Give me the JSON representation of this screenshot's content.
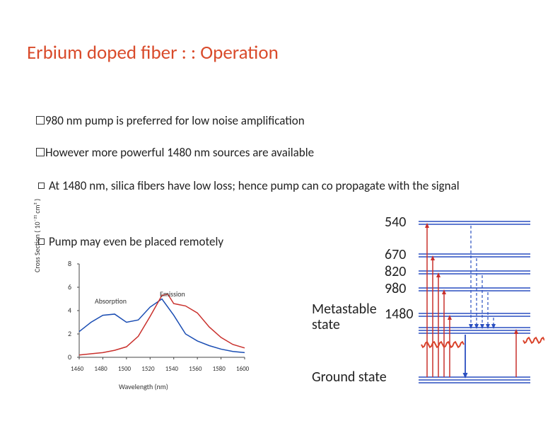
{
  "title": "Erbium doped fiber : : Operation",
  "bullets": {
    "b1": "980 nm pump is preferred for low noise amplification",
    "b2": "However more powerful 1480 nm sources are available",
    "b3": "At 1480 nm, silica fibers have low loss; hence pump can co propagate with the signal",
    "b4": "Pump may even be placed remotely"
  },
  "wavelengths": {
    "n540": "540",
    "n670": "670",
    "n820": "820",
    "n980": "980",
    "n1480": "1480"
  },
  "labels": {
    "metastable": "Metastable state",
    "ground": "Ground state"
  },
  "chart": {
    "type": "line",
    "yaxis_label": "Cross Section ( 10⁻²¹ cm² )",
    "xaxis_label": "Wavelength (nm)",
    "ylim": [
      0,
      8
    ],
    "ytick_step": 2,
    "xlim": [
      1460,
      1600
    ],
    "xtick_step": 20,
    "xticks": [
      "1460",
      "1480",
      "1500",
      "1520",
      "1540",
      "1560",
      "1580",
      "1600"
    ],
    "yticks": [
      "0",
      "2",
      "4",
      "6",
      "8"
    ],
    "series_absorption": {
      "label": "Absorption",
      "color": "#1a4db3",
      "points": [
        [
          1460,
          2.2
        ],
        [
          1470,
          3.0
        ],
        [
          1480,
          3.6
        ],
        [
          1490,
          3.7
        ],
        [
          1500,
          3.0
        ],
        [
          1510,
          3.2
        ],
        [
          1520,
          4.3
        ],
        [
          1530,
          5.0
        ],
        [
          1540,
          3.6
        ],
        [
          1550,
          2.0
        ],
        [
          1560,
          1.4
        ],
        [
          1570,
          1.0
        ],
        [
          1580,
          0.7
        ],
        [
          1590,
          0.5
        ],
        [
          1600,
          0.4
        ]
      ]
    },
    "series_emission": {
      "label": "Emission",
      "color": "#c9302c",
      "points": [
        [
          1460,
          0.2
        ],
        [
          1470,
          0.3
        ],
        [
          1480,
          0.4
        ],
        [
          1490,
          0.6
        ],
        [
          1500,
          0.9
        ],
        [
          1510,
          1.8
        ],
        [
          1520,
          3.5
        ],
        [
          1530,
          5.3
        ],
        [
          1535,
          5.4
        ],
        [
          1540,
          4.6
        ],
        [
          1550,
          4.4
        ],
        [
          1560,
          3.8
        ],
        [
          1570,
          2.6
        ],
        [
          1580,
          1.7
        ],
        [
          1590,
          1.1
        ],
        [
          1600,
          0.8
        ]
      ]
    },
    "background_color": "#ffffff",
    "axis_color": "#454545",
    "line_width": 1.5,
    "font_size": 10
  },
  "energy_diagram": {
    "type": "energy-levels",
    "level_color": "#2a4fc0",
    "level_line_width": 1.4,
    "emission_wave_color": "#d9432b",
    "decay_line_color": "#2a4fc0",
    "absorption_arrow_color": "#c9302c",
    "emission_arrow_color": "#2a4fc0",
    "levels": [
      {
        "name": "l540",
        "y": 18,
        "pairs": 2
      },
      {
        "name": "l670",
        "y": 64,
        "pairs": 2
      },
      {
        "name": "l820",
        "y": 88,
        "pairs": 2
      },
      {
        "name": "l980",
        "y": 112,
        "pairs": 2
      },
      {
        "name": "l1480",
        "y": 148,
        "pairs": 2
      },
      {
        "name": "metastable",
        "y": 168,
        "pairs": 3
      },
      {
        "name": "ground",
        "y": 238,
        "pairs": 3
      }
    ],
    "arrows_up": [
      {
        "x": 14,
        "from": "ground",
        "to": "l540",
        "color": "#c9302c"
      },
      {
        "x": 22,
        "from": "ground",
        "to": "l670",
        "color": "#c9302c"
      },
      {
        "x": 30,
        "from": "ground",
        "to": "l820",
        "color": "#c9302c"
      },
      {
        "x": 38,
        "from": "ground",
        "to": "l980",
        "color": "#c9302c"
      },
      {
        "x": 46,
        "from": "ground",
        "to": "l1480",
        "color": "#c9302c"
      },
      {
        "x": 140,
        "from": "ground",
        "to": "metastable",
        "color": "#c9302c"
      }
    ],
    "arrows_down_dashed": [
      {
        "x": 76,
        "from": "l540",
        "to": "metastable"
      },
      {
        "x": 84,
        "from": "l670",
        "to": "metastable"
      },
      {
        "x": 92,
        "from": "l820",
        "to": "metastable"
      },
      {
        "x": 100,
        "from": "l980",
        "to": "metastable"
      },
      {
        "x": 108,
        "from": "l1480",
        "to": "metastable"
      }
    ],
    "down_emission": {
      "x": 68,
      "from": "metastable",
      "to": "ground",
      "color": "#2a4fc0"
    }
  }
}
